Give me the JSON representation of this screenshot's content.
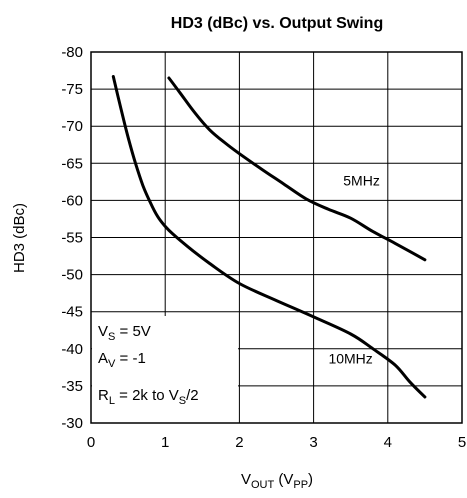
{
  "chart_data": {
    "type": "line",
    "title": "HD3 (dBc) vs. Output Swing",
    "xlabel": {
      "main": "V",
      "sub": "OUT",
      "unit_open": " (V",
      "unit_sub": "PP",
      "unit_close": ")"
    },
    "ylabel": "HD3 (dBc)",
    "xlim": [
      0,
      5
    ],
    "ylim": [
      -30,
      -80
    ],
    "y_reversed": true,
    "grid": true,
    "xticks": [
      0,
      1,
      2,
      3,
      4,
      5
    ],
    "yticks": [
      -80,
      -75,
      -70,
      -65,
      -60,
      -55,
      -50,
      -45,
      -40,
      -35,
      -30
    ],
    "series": [
      {
        "name": "5MHz",
        "x": [
          1.05,
          1.2,
          1.4,
          1.6,
          1.8,
          2.0,
          2.3,
          2.6,
          2.9,
          3.2,
          3.5,
          3.8,
          4.1,
          4.5
        ],
        "y": [
          -76.5,
          -74.5,
          -71.8,
          -69.5,
          -67.8,
          -66.3,
          -64.2,
          -62.2,
          -60.2,
          -58.8,
          -57.6,
          -55.8,
          -54.2,
          -52.0
        ]
      },
      {
        "name": "10MHz",
        "x": [
          0.3,
          0.4,
          0.5,
          0.6,
          0.7,
          0.8,
          0.9,
          1.0,
          1.1,
          1.3,
          1.6,
          2.0,
          2.5,
          3.0,
          3.5,
          3.8,
          4.1,
          4.3,
          4.5
        ],
        "y": [
          -76.7,
          -72.5,
          -68.5,
          -65.0,
          -62.0,
          -59.7,
          -57.8,
          -56.5,
          -55.5,
          -53.8,
          -51.5,
          -48.8,
          -46.5,
          -44.3,
          -42.0,
          -40.0,
          -37.8,
          -35.5,
          -33.5
        ]
      }
    ],
    "annotations": [
      {
        "text": "5MHz",
        "x": 3.4,
        "y": -62.0
      },
      {
        "text": "10MHz",
        "x": 3.2,
        "y": -38.0
      }
    ],
    "conditions": [
      {
        "main": "V",
        "sub": "S",
        "rest": " = 5V"
      },
      {
        "main": "A",
        "sub": "V",
        "rest": " = -1"
      },
      {
        "main": "R",
        "sub": "L",
        "rest": " = 2k to V",
        "sub2": "S",
        "rest2": "/2"
      }
    ]
  }
}
